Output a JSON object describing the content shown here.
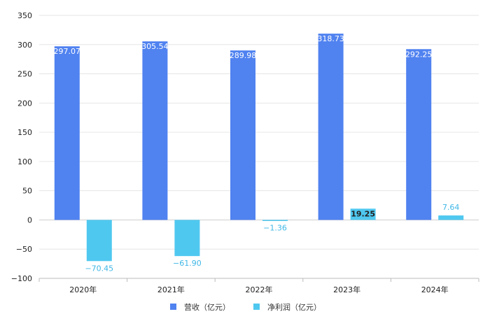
{
  "chart_data": {
    "type": "bar",
    "categories": [
      "2020年",
      "2021年",
      "2022年",
      "2023年",
      "2024年"
    ],
    "series": [
      {
        "name": "营收（亿元）",
        "color": "#5082f0",
        "values": [
          297.07,
          305.54,
          289.98,
          318.73,
          292.25
        ],
        "labels": [
          "297.07",
          "305.54",
          "289.98",
          "318.73",
          "292.25"
        ]
      },
      {
        "name": "净利润（亿元）",
        "color": "#4fc8f0",
        "values": [
          -70.45,
          -61.9,
          -1.36,
          19.25,
          7.64
        ],
        "labels": [
          "−70.45",
          "−61.90",
          "−1.36",
          "19.25",
          "7.64"
        ]
      }
    ],
    "ylim": [
      -100,
      350
    ],
    "yticks": [
      -100,
      -50,
      0,
      50,
      100,
      150,
      200,
      250,
      300,
      350
    ],
    "ytick_labels": [
      "−100",
      "−50",
      "0",
      "50",
      "100",
      "150",
      "200",
      "250",
      "300",
      "350"
    ],
    "grid": true,
    "legend_position": "bottom-center",
    "title": "",
    "xlabel": "",
    "ylabel": ""
  }
}
